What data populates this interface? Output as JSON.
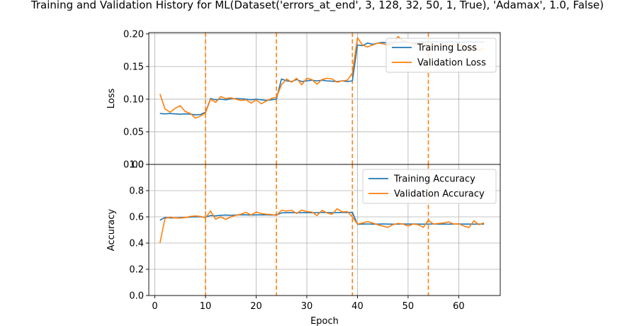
{
  "chart_data": {
    "title": "Training and Validation History for ML(Dataset('errors_at_end', 3, 128, 32, 50, 1, True), 'Adamax', 1.0, False)",
    "xlabel": "Epoch",
    "x_ticks": [
      0,
      10,
      20,
      30,
      40,
      50,
      60
    ],
    "xlim": [
      -1.2,
      68.2
    ],
    "vlines": [
      10,
      24,
      39,
      54
    ],
    "colors": {
      "training": "#1f77b4",
      "validation": "#ff7f0e",
      "grid": "#b0b0b0"
    },
    "panels": [
      {
        "type": "line",
        "ylabel": "Loss",
        "ylim": [
          0.0,
          0.202
        ],
        "y_ticks": [
          0.0,
          0.05,
          0.1,
          0.15,
          0.2
        ],
        "y_tick_labels": [
          "0.00",
          "0.05",
          "0.10",
          "0.15",
          "0.20"
        ],
        "grid": true,
        "legend_position": "top-right",
        "series": [
          {
            "name": "Training Loss",
            "x": [
              1,
              2,
              3,
              4,
              5,
              6,
              7,
              8,
              9,
              10,
              11,
              12,
              13,
              14,
              15,
              16,
              17,
              18,
              19,
              20,
              21,
              22,
              23,
              24,
              25,
              26,
              27,
              28,
              29,
              30,
              31,
              32,
              33,
              34,
              35,
              36,
              37,
              38,
              39,
              40,
              41,
              42,
              43,
              44,
              45,
              46,
              47,
              48,
              49,
              50,
              51,
              52,
              53,
              54,
              55,
              56,
              57,
              58,
              59,
              60,
              61,
              62,
              63,
              64,
              65
            ],
            "values": [
              0.078,
              0.0775,
              0.078,
              0.0775,
              0.077,
              0.0775,
              0.077,
              0.076,
              0.0765,
              0.08,
              0.101,
              0.099,
              0.1,
              0.099,
              0.1005,
              0.101,
              0.1005,
              0.1,
              0.099,
              0.1,
              0.099,
              0.098,
              0.099,
              0.1,
              0.131,
              0.128,
              0.127,
              0.13,
              0.127,
              0.128,
              0.129,
              0.128,
              0.129,
              0.128,
              0.1275,
              0.127,
              0.128,
              0.127,
              0.128,
              0.183,
              0.182,
              0.186,
              0.184,
              0.186,
              0.187,
              0.186,
              0.187,
              0.187,
              0.188,
              0.187,
              0.186,
              0.187,
              0.188,
              0.187,
              0.188,
              0.188,
              0.187,
              0.188,
              0.188,
              0.187,
              0.187,
              0.188,
              0.187,
              0.188,
              0.187
            ]
          },
          {
            "name": "Validation Loss",
            "x": [
              1,
              2,
              3,
              4,
              5,
              6,
              7,
              8,
              9,
              10,
              11,
              12,
              13,
              14,
              15,
              16,
              17,
              18,
              19,
              20,
              21,
              22,
              23,
              24,
              25,
              26,
              27,
              28,
              29,
              30,
              31,
              32,
              33,
              34,
              35,
              36,
              37,
              38,
              39,
              40,
              41,
              42,
              43,
              44,
              45,
              46,
              47,
              48,
              49,
              50,
              51,
              52,
              53,
              54,
              55,
              56,
              57,
              58,
              59,
              60,
              61,
              62,
              63,
              64,
              65
            ],
            "values": [
              0.108,
              0.085,
              0.08,
              0.086,
              0.09,
              0.081,
              0.078,
              0.071,
              0.074,
              0.079,
              0.1,
              0.095,
              0.104,
              0.101,
              0.102,
              0.1,
              0.098,
              0.099,
              0.094,
              0.099,
              0.093,
              0.097,
              0.101,
              0.103,
              0.122,
              0.131,
              0.126,
              0.132,
              0.122,
              0.132,
              0.13,
              0.123,
              0.13,
              0.132,
              0.131,
              0.126,
              0.128,
              0.129,
              0.14,
              0.194,
              0.183,
              0.18,
              0.183,
              0.186,
              0.185,
              0.183,
              0.184,
              0.196,
              0.19,
              0.187,
              0.185,
              0.184,
              0.186,
              0.183,
              0.182,
              0.183,
              0.185,
              0.183,
              0.184,
              0.183,
              0.182,
              0.177,
              0.18,
              0.175,
              0.178
            ]
          }
        ]
      },
      {
        "type": "line",
        "ylabel": "Accuracy",
        "ylim": [
          0.0,
          1.0
        ],
        "y_ticks": [
          0.0,
          0.2,
          0.4,
          0.6,
          0.8,
          1.0
        ],
        "y_tick_labels": [
          "0.0",
          "0.2",
          "0.4",
          "0.6",
          "0.8",
          "1.0"
        ],
        "grid": true,
        "legend_position": "top-right",
        "series": [
          {
            "name": "Training Accuracy",
            "x": [
              1,
              2,
              3,
              4,
              5,
              6,
              7,
              8,
              9,
              10,
              11,
              12,
              13,
              14,
              15,
              16,
              17,
              18,
              19,
              20,
              21,
              22,
              23,
              24,
              25,
              26,
              27,
              28,
              29,
              30,
              31,
              32,
              33,
              34,
              35,
              36,
              37,
              38,
              39,
              40,
              41,
              42,
              43,
              44,
              45,
              46,
              47,
              48,
              49,
              50,
              51,
              52,
              53,
              54,
              55,
              56,
              57,
              58,
              59,
              60,
              61,
              62,
              63,
              64,
              65
            ],
            "values": [
              0.575,
              0.595,
              0.592,
              0.592,
              0.594,
              0.596,
              0.598,
              0.6,
              0.6,
              0.598,
              0.61,
              0.608,
              0.612,
              0.614,
              0.612,
              0.614,
              0.616,
              0.615,
              0.614,
              0.615,
              0.615,
              0.616,
              0.614,
              0.615,
              0.63,
              0.632,
              0.633,
              0.631,
              0.632,
              0.633,
              0.631,
              0.632,
              0.634,
              0.633,
              0.632,
              0.633,
              0.634,
              0.633,
              0.635,
              0.543,
              0.545,
              0.546,
              0.544,
              0.545,
              0.546,
              0.545,
              0.544,
              0.545,
              0.546,
              0.545,
              0.546,
              0.545,
              0.544,
              0.545,
              0.546,
              0.545,
              0.545,
              0.544,
              0.545,
              0.546,
              0.545,
              0.545,
              0.544,
              0.545,
              0.545
            ]
          },
          {
            "name": "Validation Accuracy",
            "x": [
              1,
              2,
              3,
              4,
              5,
              6,
              7,
              8,
              9,
              10,
              11,
              12,
              13,
              14,
              15,
              16,
              17,
              18,
              19,
              20,
              21,
              22,
              23,
              24,
              25,
              26,
              27,
              28,
              29,
              30,
              31,
              32,
              33,
              34,
              35,
              36,
              37,
              38,
              39,
              40,
              41,
              42,
              43,
              44,
              45,
              46,
              47,
              48,
              49,
              50,
              51,
              52,
              53,
              54,
              55,
              56,
              57,
              58,
              59,
              60,
              61,
              62,
              63,
              64,
              65
            ],
            "values": [
              0.4,
              0.587,
              0.598,
              0.592,
              0.59,
              0.595,
              0.603,
              0.607,
              0.603,
              0.593,
              0.645,
              0.582,
              0.6,
              0.581,
              0.6,
              0.612,
              0.62,
              0.635,
              0.614,
              0.637,
              0.625,
              0.62,
              0.618,
              0.61,
              0.65,
              0.645,
              0.65,
              0.626,
              0.652,
              0.64,
              0.637,
              0.61,
              0.65,
              0.63,
              0.62,
              0.662,
              0.638,
              0.64,
              0.6,
              0.545,
              0.553,
              0.565,
              0.553,
              0.54,
              0.53,
              0.52,
              0.54,
              0.55,
              0.545,
              0.53,
              0.545,
              0.54,
              0.52,
              0.575,
              0.545,
              0.55,
              0.553,
              0.562,
              0.545,
              0.548,
              0.53,
              0.518,
              0.57,
              0.54,
              0.555
            ]
          }
        ]
      }
    ]
  }
}
